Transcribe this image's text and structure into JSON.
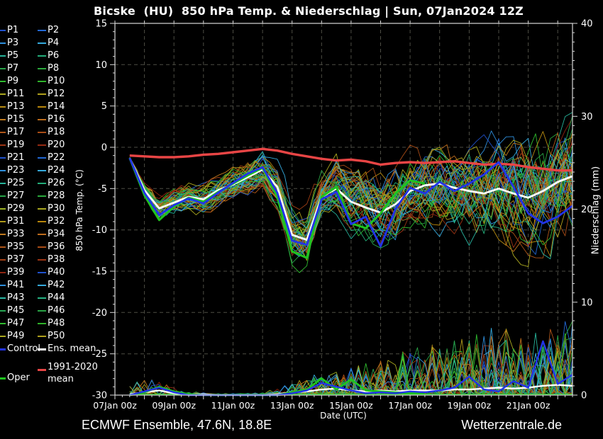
{
  "title": "Bicske  (HU)  850 hPa Temp. & Niederschlag | Sun, 07Jan2024 12Z",
  "footer": {
    "left": "ECMWF Ensemble, 47.6N, 18.8E",
    "right": "Wetterzentrale.de"
  },
  "axes": {
    "left_label": "850 hPa Temp. (°C)",
    "right_label": "Niederschlag (mm)",
    "x_label": "Date (UTC)",
    "temp_ticks": [
      15,
      10,
      5,
      0,
      -5,
      -10,
      -15,
      -20,
      -25,
      -30
    ],
    "precip_ticks": [
      40,
      30,
      20,
      10,
      0
    ],
    "x_tick_labels": [
      "07Jan 00z",
      "09Jan 00z",
      "11Jan 00z",
      "13Jan 00z",
      "15Jan 00z",
      "17Jan 00z",
      "19Jan 00z",
      "21Jan 00z"
    ],
    "x_tick_hours": [
      0,
      48,
      96,
      144,
      192,
      240,
      288,
      336
    ],
    "temp_range": [
      15,
      -30
    ],
    "precip_range": [
      0,
      40
    ],
    "time_range_hours": [
      0,
      372
    ],
    "grid": "dashed, vertical every 24h, horizontal every 5C"
  },
  "legend": {
    "control": {
      "label": "Control",
      "color": "#2233e8"
    },
    "ens_mean": {
      "label": "Ens. mean",
      "color": "#ffffff"
    },
    "climate": {
      "label_line1": "1991-2020",
      "label_line2": "mean",
      "color": "#e84545"
    },
    "oper": {
      "label": "Oper",
      "color": "#1fc41f"
    },
    "members": [
      {
        "label": "P1",
        "color": "#1f51cc"
      },
      {
        "label": "P2",
        "color": "#2268d4"
      },
      {
        "label": "P3",
        "color": "#2e8fdd"
      },
      {
        "label": "P4",
        "color": "#35aadd"
      },
      {
        "label": "P5",
        "color": "#26b39a"
      },
      {
        "label": "P6",
        "color": "#23ad7a"
      },
      {
        "label": "P7",
        "color": "#26a347"
      },
      {
        "label": "P8",
        "color": "#2aa93c"
      },
      {
        "label": "P9",
        "color": "#2fbb2f"
      },
      {
        "label": "P10",
        "color": "#2fb32a"
      },
      {
        "label": "P11",
        "color": "#aaa81f"
      },
      {
        "label": "P12",
        "color": "#b0a01c"
      },
      {
        "label": "P13",
        "color": "#b88c12"
      },
      {
        "label": "P14",
        "color": "#b8860b"
      },
      {
        "label": "P15",
        "color": "#c07a1e"
      },
      {
        "label": "P16",
        "color": "#bd6c1c"
      },
      {
        "label": "P17",
        "color": "#b05618"
      },
      {
        "label": "P18",
        "color": "#a94c16"
      },
      {
        "label": "P19",
        "color": "#9d3414"
      },
      {
        "label": "P20",
        "color": "#962a12"
      },
      {
        "label": "P21",
        "color": "#1f51cc"
      },
      {
        "label": "P22",
        "color": "#2268d4"
      },
      {
        "label": "P23",
        "color": "#2e8fdd"
      },
      {
        "label": "P24",
        "color": "#35aadd"
      },
      {
        "label": "P25",
        "color": "#26b39a"
      },
      {
        "label": "P26",
        "color": "#23ad7a"
      },
      {
        "label": "P27",
        "color": "#26a347"
      },
      {
        "label": "P28",
        "color": "#2aa93c"
      },
      {
        "label": "P29",
        "color": "#9db324"
      },
      {
        "label": "P30",
        "color": "#aaa81f"
      },
      {
        "label": "P31",
        "color": "#b0991a"
      },
      {
        "label": "P32",
        "color": "#b8860b"
      },
      {
        "label": "P33",
        "color": "#c07a1e"
      },
      {
        "label": "P34",
        "color": "#bd6c1c"
      },
      {
        "label": "P35",
        "color": "#b05618"
      },
      {
        "label": "P36",
        "color": "#a94c16"
      },
      {
        "label": "P37",
        "color": "#a23f15"
      },
      {
        "label": "P38",
        "color": "#9d3414"
      },
      {
        "label": "P39",
        "color": "#8f2410"
      },
      {
        "label": "P40",
        "color": "#1f51cc"
      },
      {
        "label": "P41",
        "color": "#2e8fdd"
      },
      {
        "label": "P42",
        "color": "#35aadd"
      },
      {
        "label": "P43",
        "color": "#2bb8a4"
      },
      {
        "label": "P44",
        "color": "#26b383"
      },
      {
        "label": "P45",
        "color": "#27a854"
      },
      {
        "label": "P46",
        "color": "#29a345"
      },
      {
        "label": "P47",
        "color": "#2fbb2f"
      },
      {
        "label": "P48",
        "color": "#2eb32a"
      },
      {
        "label": "P49",
        "color": "#aaa81f"
      },
      {
        "label": "P50",
        "color": "#b0a01c"
      }
    ]
  },
  "chart_data": {
    "type": "line",
    "title": "Bicske (HU) 850 hPa Temp. & Niederschlag | Sun, 07Jan2024 12Z",
    "xlabel": "Date (UTC)",
    "ylabel_left": "850 hPa Temp. (°C)",
    "ylabel_right": "Niederschlag (mm)",
    "ylim_temp": [
      -30,
      15
    ],
    "ylim_precip": [
      0,
      40
    ],
    "x_hours_since_07jan00z": [
      12,
      24,
      36,
      48,
      60,
      72,
      84,
      96,
      108,
      120,
      132,
      144,
      156,
      168,
      180,
      192,
      204,
      216,
      228,
      240,
      252,
      264,
      276,
      288,
      300,
      312,
      324,
      336,
      348,
      360,
      372
    ],
    "series": [
      {
        "name": "Ens. mean temp",
        "values": [
          -1.3,
          -5.2,
          -7.4,
          -6.7,
          -6.0,
          -6.3,
          -5.2,
          -4.5,
          -3.6,
          -2.7,
          -4.8,
          -10.6,
          -11.2,
          -6.0,
          -5.0,
          -6.6,
          -7.3,
          -7.9,
          -6.9,
          -5.3,
          -4.6,
          -4.4,
          -4.9,
          -5.3,
          -5.6,
          -5.0,
          -5.6,
          -6.1,
          -5.3,
          -4.2,
          -3.5
        ]
      },
      {
        "name": "Control temp",
        "values": [
          -1.3,
          -5.5,
          -8.2,
          -7.0,
          -6.2,
          -6.8,
          -5.5,
          -4.3,
          -3.2,
          -2.4,
          -5.5,
          -11.3,
          -11.8,
          -6.3,
          -5.4,
          -9.3,
          -8.4,
          -12.0,
          -7.5,
          -4.9,
          -5.6,
          -4.2,
          -5.3,
          -4.4,
          -3.3,
          -1.8,
          -4.8,
          -8.0,
          -9.2,
          -8.4,
          -7.1
        ]
      },
      {
        "name": "Oper temp (ends 17Jan12z)",
        "values": [
          -1.3,
          -5.8,
          -8.8,
          -7.2,
          -6.1,
          -6.6,
          -5.4,
          -4.4,
          -3.4,
          -2.5,
          -6.0,
          -12.6,
          -13.4,
          -6.0,
          -4.8,
          -9.2,
          -9.8,
          -8.0,
          -5.6,
          -4.0,
          -4.4
        ]
      },
      {
        "name": "1991-2020 mean temp",
        "values": [
          -1.0,
          -1.1,
          -1.2,
          -1.2,
          -1.1,
          -0.9,
          -0.8,
          -0.6,
          -0.4,
          -0.2,
          -0.4,
          -0.8,
          -1.1,
          -1.4,
          -1.6,
          -1.5,
          -1.7,
          -2.1,
          -1.9,
          -1.8,
          -1.9,
          -1.8,
          -1.7,
          -1.9,
          -2.1,
          -2.0,
          -2.1,
          -2.4,
          -2.6,
          -2.8,
          -2.8
        ]
      },
      {
        "name": "Ens. mean precip",
        "values": [
          0.1,
          0.3,
          0.5,
          0.2,
          0.1,
          0.1,
          0.0,
          0.0,
          0.0,
          0.0,
          0.1,
          0.3,
          0.4,
          0.6,
          0.7,
          0.5,
          0.4,
          0.5,
          0.4,
          0.5,
          0.5,
          0.5,
          0.6,
          0.6,
          0.7,
          0.8,
          0.7,
          0.8,
          1.0,
          1.1,
          1.0
        ]
      },
      {
        "name": "Control precip",
        "values": [
          0.0,
          0.4,
          0.8,
          0.3,
          0.0,
          0.0,
          0.0,
          0.0,
          0.0,
          0.0,
          0.0,
          0.2,
          0.5,
          1.3,
          0.9,
          0.5,
          0.2,
          0.3,
          0.2,
          0.4,
          0.3,
          0.5,
          0.8,
          2.0,
          0.6,
          0.4,
          1.5,
          0.8,
          5.8,
          1.2,
          2.2
        ]
      },
      {
        "name": "Oper precip (ends 17Jan12z)",
        "values": [
          0.0,
          0.3,
          0.9,
          0.4,
          0.1,
          0.0,
          0.0,
          0.0,
          0.0,
          0.0,
          0.0,
          0.3,
          0.6,
          1.8,
          0.6,
          1.7,
          0.5,
          0.4,
          0.3,
          0.2,
          0.2
        ]
      }
    ],
    "ensemble_members": {
      "count": 50,
      "note": "50 thin member traces spread around the ensemble mean; spread grows with lead time",
      "temp_spread_sigma": [
        0.15,
        0.8,
        1.2,
        1.2,
        1.3,
        1.4,
        1.5,
        1.5,
        1.6,
        1.7,
        2.0,
        2.4,
        2.6,
        2.4,
        2.6,
        2.8,
        3.0,
        3.2,
        3.3,
        3.4,
        3.6,
        3.8,
        4.0,
        4.2,
        4.5,
        4.7,
        5.0,
        5.2,
        5.4,
        5.5,
        5.6
      ],
      "precip_spike_max": [
        1.2,
        1.8,
        1.5,
        0.8,
        0.5,
        0.3,
        0.2,
        0.2,
        0.2,
        0.3,
        0.8,
        1.5,
        2.0,
        2.5,
        2.5,
        3.0,
        3.5,
        4.0,
        4.5,
        5.0,
        5.5,
        5.5,
        6.0,
        6.5,
        7.0,
        7.5,
        7.0,
        6.5,
        7.0,
        7.5,
        8.5
      ]
    }
  }
}
